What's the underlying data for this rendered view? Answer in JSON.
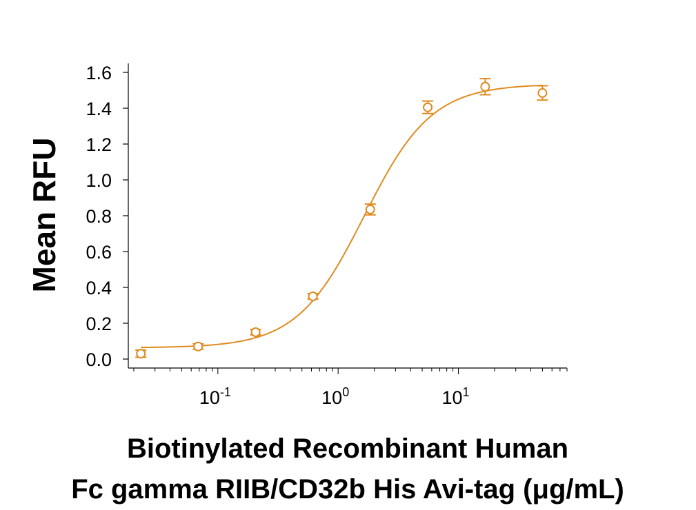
{
  "chart_data": {
    "type": "scatter",
    "title": "",
    "xlabel_lines": [
      "Biotinylated Recombinant Human",
      "Fc gamma RIIB/CD32b His Avi-tag (μg/mL)"
    ],
    "ylabel": "Mean RFU",
    "x_scale": "log",
    "xlim": [
      0.018,
      80
    ],
    "ylim": [
      -0.05,
      1.65
    ],
    "y_ticks": [
      "0.0",
      "0.2",
      "0.4",
      "0.6",
      "0.8",
      "1.0",
      "1.2",
      "1.4",
      "1.6"
    ],
    "x_tick_labels": [
      {
        "base": "10",
        "exp": "-1",
        "value": 0.1
      },
      {
        "base": "10",
        "exp": "0",
        "value": 1
      },
      {
        "base": "10",
        "exp": "1",
        "value": 10
      }
    ],
    "grid": false,
    "legend": "none",
    "color": "#e08a1e",
    "series": [
      {
        "x": [
          0.0229,
          0.0686,
          0.206,
          0.617,
          1.85,
          5.56,
          16.7,
          50
        ],
        "y": [
          0.03,
          0.07,
          0.15,
          0.35,
          0.835,
          1.405,
          1.52,
          1.485
        ],
        "error": [
          0.02,
          0.015,
          0.015,
          0.015,
          0.03,
          0.035,
          0.045,
          0.04
        ]
      }
    ],
    "fit_curve": {
      "model": "4PL",
      "bottom": 0.063,
      "top": 1.535,
      "ec50": 1.65,
      "hill": 1.55
    }
  }
}
